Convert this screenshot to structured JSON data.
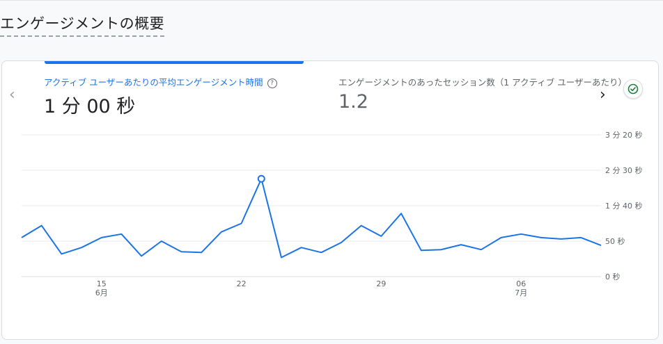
{
  "page": {
    "title": "エンゲージメントの概要"
  },
  "metrics": [
    {
      "label": "アクティブ ユーザーあたりの平均エンゲージメント時間",
      "value": "1 分 00 秒",
      "active": true,
      "help_icon": "help-circle-icon"
    },
    {
      "label": "エンゲージメントのあったセッション数（1 アクティブ ユーザーあたり）",
      "value": "1.2",
      "active": false
    }
  ],
  "nav": {
    "prev_icon": "chevron-left-icon",
    "next_icon": "chevron-right-icon"
  },
  "status_icon": "check-circle-icon",
  "colors": {
    "accent": "#1a73e8",
    "status": "#188038"
  },
  "chart_data": {
    "type": "line",
    "x": [
      "6/11",
      "6/12",
      "6/13",
      "6/14",
      "6/15",
      "6/16",
      "6/17",
      "6/18",
      "6/19",
      "6/20",
      "6/21",
      "6/22",
      "6/23",
      "6/24",
      "6/25",
      "6/26",
      "6/27",
      "6/28",
      "6/29",
      "6/30",
      "7/1",
      "7/2",
      "7/3",
      "7/4",
      "7/5",
      "7/6",
      "7/7",
      "7/8",
      "7/9",
      "7/10"
    ],
    "series": [
      {
        "values": [
          55,
          72,
          32,
          41,
          55,
          60,
          29,
          50,
          35,
          34,
          63,
          75,
          138,
          27,
          41,
          34,
          48,
          72,
          57,
          89,
          37,
          38,
          45,
          38,
          55,
          60,
          55,
          53,
          55,
          44
        ],
        "highlight_index": 12
      }
    ],
    "xtick_labels": [
      {
        "at": "6/15",
        "label": "15",
        "sublabel": "6月"
      },
      {
        "at": "6/22",
        "label": "22",
        "sublabel": ""
      },
      {
        "at": "6/29",
        "label": "29",
        "sublabel": ""
      },
      {
        "at": "7/6",
        "label": "06",
        "sublabel": "7月"
      }
    ],
    "yticks": [
      0,
      50,
      100,
      150,
      200
    ],
    "ytick_labels": [
      "0 秒",
      "50 秒",
      "1 分 40 秒",
      "2 分 30 秒",
      "3 分 20 秒"
    ],
    "ylim": [
      0,
      200
    ],
    "grid": true
  }
}
